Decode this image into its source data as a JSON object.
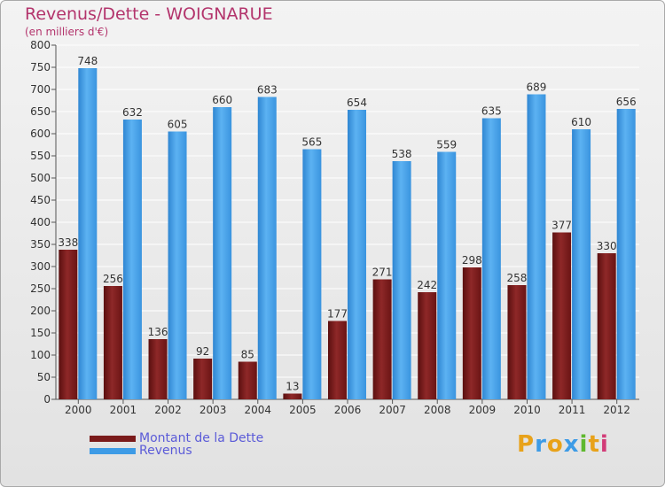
{
  "chart_data": {
    "type": "bar",
    "title": "Revenus/Dette - WOIGNARUE",
    "subtitle": "(en milliers d'€)",
    "xlabel": "",
    "ylabel": "",
    "categories": [
      "2000",
      "2001",
      "2002",
      "2003",
      "2004",
      "2005",
      "2006",
      "2007",
      "2008",
      "2009",
      "2010",
      "2011",
      "2012"
    ],
    "series": [
      {
        "name": "Montant de la Dette",
        "color": "#7a1a1a",
        "values": [
          338,
          256,
          136,
          92,
          85,
          13,
          177,
          271,
          242,
          298,
          258,
          377,
          330
        ]
      },
      {
        "name": "Revenus",
        "color": "#3d9be6",
        "values": [
          748,
          632,
          605,
          660,
          683,
          565,
          654,
          538,
          559,
          635,
          689,
          610,
          656
        ]
      }
    ],
    "ylim": [
      0,
      800
    ],
    "yticks": [
      0,
      50,
      100,
      150,
      200,
      250,
      300,
      350,
      400,
      450,
      500,
      550,
      600,
      650,
      700,
      750,
      800
    ],
    "grid": true,
    "legend": "bottom-left"
  },
  "branding": {
    "logo_letters": [
      "P",
      "r",
      "o",
      "x",
      "i",
      "t",
      "i"
    ],
    "logo_colors": [
      "#e8a21a",
      "#3d9be6",
      "#e8a21a",
      "#3d9be6",
      "#5fb82e",
      "#e8a21a",
      "#d23c78"
    ]
  }
}
